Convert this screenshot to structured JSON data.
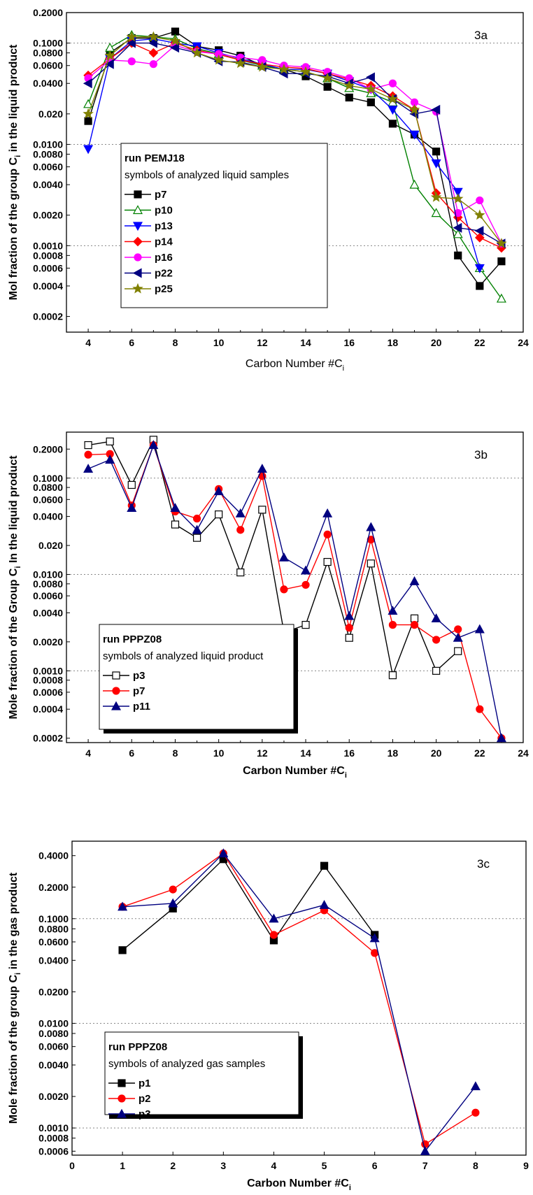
{
  "chart_data": [
    {
      "type": "line",
      "panel_label": "3a",
      "xlabel": "Carbon Number #C",
      "xlabel_sub": "i",
      "ylabel": "Mol fraction of the group C",
      "ylabel_sub": "i",
      "ylabel_rest": " in the liquid product",
      "y_scale": "log",
      "xlim": [
        3,
        24
      ],
      "ylim": [
        0.00014,
        0.2
      ],
      "x_ticks": [
        4,
        6,
        8,
        10,
        12,
        14,
        16,
        18,
        20,
        22,
        24
      ],
      "y_ticks": [
        "0.0002",
        "0.0004",
        "0.0006",
        "0.0008",
        "0.0010",
        "0.0020",
        "0.0040",
        "0.0060",
        "0.0080",
        "0.0100",
        "0.020",
        "0.0400",
        "0.0600",
        "0.0800",
        "0.1000",
        "0.2000"
      ],
      "gridlines_y": [
        0.001,
        0.01,
        0.1
      ],
      "legend": {
        "title": "run PEMJ18",
        "subtitle": "symbols of analyzed liquid samples",
        "position": "lower-left",
        "shadow": false
      },
      "series": [
        {
          "name": "p7",
          "color": "#000000",
          "marker": "square-filled",
          "x": [
            4,
            5,
            6,
            7,
            8,
            9,
            10,
            11,
            12,
            13,
            14,
            15,
            16,
            17,
            18,
            19,
            20,
            21,
            22,
            23
          ],
          "values": [
            0.017,
            0.08,
            0.112,
            0.112,
            0.13,
            0.093,
            0.085,
            0.075,
            0.06,
            0.055,
            0.047,
            0.037,
            0.029,
            0.026,
            0.016,
            0.0125,
            0.0085,
            0.0008,
            0.0004,
            0.0007
          ]
        },
        {
          "name": "p10",
          "color": "#008000",
          "marker": "triangle-up-open",
          "x": [
            4,
            5,
            6,
            7,
            8,
            9,
            10,
            11,
            12,
            13,
            14,
            15,
            16,
            17,
            18,
            19,
            20,
            21,
            22,
            23
          ],
          "values": [
            0.025,
            0.09,
            0.12,
            0.115,
            0.11,
            0.088,
            0.078,
            0.068,
            0.06,
            0.055,
            0.052,
            0.045,
            0.036,
            0.032,
            0.026,
            0.004,
            0.0021,
            0.0013,
            0.0006,
            0.0003
          ]
        },
        {
          "name": "p13",
          "color": "#0000ff",
          "marker": "triangle-down-filled",
          "x": [
            4,
            5,
            6,
            7,
            8,
            9,
            10,
            11,
            12,
            13,
            14,
            15,
            16,
            17,
            18,
            19,
            20,
            21,
            22
          ],
          "values": [
            0.009,
            0.07,
            0.105,
            0.11,
            0.1,
            0.093,
            0.08,
            0.07,
            0.062,
            0.055,
            0.055,
            0.05,
            0.042,
            0.035,
            0.022,
            0.0125,
            0.0065,
            0.0034,
            0.0006
          ]
        },
        {
          "name": "p14",
          "color": "#ff0000",
          "marker": "diamond-filled",
          "x": [
            4,
            5,
            6,
            7,
            8,
            9,
            10,
            11,
            12,
            13,
            14,
            15,
            16,
            17,
            18,
            19,
            20,
            21,
            22,
            23
          ],
          "values": [
            0.048,
            0.07,
            0.1,
            0.08,
            0.1,
            0.085,
            0.077,
            0.068,
            0.062,
            0.058,
            0.056,
            0.05,
            0.044,
            0.038,
            0.03,
            0.022,
            0.0033,
            0.0019,
            0.0012,
            0.00095
          ]
        },
        {
          "name": "p16",
          "color": "#ff00ff",
          "marker": "circle-filled",
          "x": [
            4,
            5,
            6,
            7,
            8,
            9,
            10,
            11,
            12,
            13,
            14,
            15,
            16,
            17,
            18,
            19,
            20,
            21,
            22,
            23
          ],
          "values": [
            0.045,
            0.068,
            0.066,
            0.062,
            0.095,
            0.082,
            0.078,
            0.072,
            0.068,
            0.06,
            0.058,
            0.052,
            0.045,
            0.035,
            0.04,
            0.026,
            0.021,
            0.0021,
            0.0028,
            0.00105
          ]
        },
        {
          "name": "p22",
          "color": "#000080",
          "marker": "triangle-left-filled",
          "x": [
            4,
            5,
            6,
            7,
            8,
            9,
            10,
            11,
            12,
            13,
            14,
            15,
            16,
            17,
            18,
            19,
            20,
            21,
            22,
            23
          ],
          "values": [
            0.04,
            0.062,
            0.1,
            0.1,
            0.09,
            0.08,
            0.066,
            0.065,
            0.058,
            0.05,
            0.05,
            0.047,
            0.04,
            0.046,
            0.028,
            0.02,
            0.022,
            0.0015,
            0.0014,
            0.00105
          ]
        },
        {
          "name": "p25",
          "color": "#808000",
          "marker": "star-filled",
          "x": [
            4,
            5,
            6,
            7,
            8,
            9,
            10,
            11,
            12,
            13,
            14,
            15,
            16,
            17,
            18,
            19,
            20,
            21,
            22,
            23
          ],
          "values": [
            0.02,
            0.075,
            0.115,
            0.115,
            0.105,
            0.08,
            0.068,
            0.063,
            0.058,
            0.055,
            0.052,
            0.045,
            0.038,
            0.035,
            0.028,
            0.022,
            0.003,
            0.0029,
            0.002,
            0.00105
          ]
        }
      ]
    },
    {
      "type": "line",
      "panel_label": "3b",
      "xlabel": "Carbon Number #C",
      "xlabel_sub": "i",
      "ylabel": "Mole fraction of the Group C",
      "ylabel_sub": "i",
      "ylabel_rest": " In the liquid product",
      "y_scale": "log",
      "xlim": [
        3,
        24
      ],
      "ylim": [
        0.00018,
        0.3
      ],
      "x_ticks": [
        4,
        6,
        8,
        10,
        12,
        14,
        16,
        18,
        20,
        22,
        24
      ],
      "y_ticks": [
        "0.0002",
        "0.0004",
        "0.0006",
        "0.0008",
        "0.0010",
        "0.0020",
        "0.0040",
        "0.0060",
        "0.0080",
        "0.0100",
        "0.020",
        "0.0400",
        "0.0600",
        "0.0800",
        "0.1000",
        "0.2000"
      ],
      "gridlines_y": [
        0.001,
        0.01,
        0.1
      ],
      "legend": {
        "title": "run PPPZ08",
        "subtitle": "symbols of analyzed liquid product",
        "position": "lower-left",
        "shadow": true
      },
      "series": [
        {
          "name": "p3",
          "color": "#000000",
          "marker": "square-open",
          "x": [
            4,
            5,
            6,
            7,
            8,
            9,
            10,
            11,
            12,
            13,
            14,
            15,
            16,
            17,
            18,
            19,
            20,
            21
          ],
          "values": [
            0.22,
            0.24,
            0.085,
            0.25,
            0.033,
            0.024,
            0.042,
            0.0105,
            0.047,
            0.0025,
            0.003,
            0.0135,
            0.0022,
            0.013,
            0.0009,
            0.0035,
            0.001,
            0.0016
          ]
        },
        {
          "name": "p7",
          "color": "#ff0000",
          "marker": "circle-filled",
          "x": [
            4,
            5,
            6,
            7,
            8,
            9,
            10,
            11,
            12,
            13,
            14,
            15,
            16,
            17,
            18,
            19,
            20,
            21,
            22,
            23
          ],
          "values": [
            0.175,
            0.178,
            0.052,
            0.22,
            0.045,
            0.038,
            0.077,
            0.029,
            0.105,
            0.007,
            0.0078,
            0.026,
            0.0028,
            0.023,
            0.003,
            0.003,
            0.0021,
            0.0027,
            0.0004,
            0.0002
          ]
        },
        {
          "name": "p11",
          "color": "#000080",
          "marker": "triangle-up-filled",
          "x": [
            4,
            5,
            6,
            7,
            8,
            9,
            10,
            11,
            12,
            13,
            14,
            15,
            16,
            17,
            18,
            19,
            20,
            21,
            22,
            23
          ],
          "values": [
            0.125,
            0.155,
            0.049,
            0.22,
            0.049,
            0.029,
            0.073,
            0.043,
            0.125,
            0.015,
            0.011,
            0.043,
            0.0037,
            0.031,
            0.0042,
            0.0085,
            0.0035,
            0.0022,
            0.0027,
            0.0002
          ]
        }
      ]
    },
    {
      "type": "line",
      "panel_label": "3c",
      "xlabel": "Carbon Number #C",
      "xlabel_sub": "i",
      "ylabel": "Mole fraction of the group C",
      "ylabel_sub": "i",
      "ylabel_rest": " in the gas product",
      "y_scale": "log",
      "xlim": [
        0,
        9
      ],
      "ylim": [
        0.00055,
        0.55
      ],
      "x_ticks": [
        0,
        1,
        2,
        3,
        4,
        5,
        6,
        7,
        8,
        9
      ],
      "y_ticks": [
        "0.0006",
        "0.0008",
        "0.0010",
        "0.0020",
        "0.0040",
        "0.0060",
        "0.0080",
        "0.0100",
        "0.0200",
        "0.0400",
        "0.0600",
        "0.0800",
        "0.1000",
        "0.2000",
        "0.4000"
      ],
      "gridlines_y": [
        0.001,
        0.01,
        0.1
      ],
      "legend": {
        "title": "run PPPZ08",
        "subtitle": "symbols of analyzed gas samples",
        "position": "lower-left",
        "shadow": true
      },
      "series": [
        {
          "name": "p1",
          "color": "#000000",
          "marker": "square-filled",
          "x": [
            1,
            2,
            3,
            4,
            5,
            6
          ],
          "values": [
            0.05,
            0.125,
            0.37,
            0.062,
            0.32,
            0.07
          ]
        },
        {
          "name": "p2",
          "color": "#ff0000",
          "marker": "circle-filled",
          "x": [
            1,
            2,
            3,
            4,
            5,
            6,
            7,
            8
          ],
          "values": [
            0.13,
            0.19,
            0.42,
            0.07,
            0.12,
            0.047,
            0.0007,
            0.0014
          ]
        },
        {
          "name": "p3",
          "color": "#000080",
          "marker": "triangle-up-filled",
          "x": [
            1,
            2,
            3,
            4,
            5,
            6,
            7,
            8
          ],
          "values": [
            0.13,
            0.14,
            0.42,
            0.1,
            0.135,
            0.065,
            0.0006,
            0.0025
          ]
        }
      ]
    }
  ]
}
